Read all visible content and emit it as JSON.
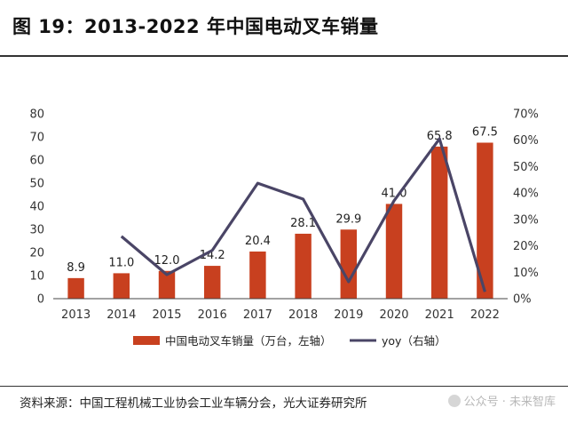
{
  "figure_title": "图 19：2013-2022 年中国电动叉车销量",
  "source_text": "资料来源：中国工程机械工业协会工业车辆分会，光大证券研究所",
  "watermark": {
    "text": "公众号 · 未来智库"
  },
  "colors": {
    "bar": "#c8401f",
    "line": "#4a4566",
    "axis": "#444444"
  },
  "chart_data": {
    "type": "bar",
    "title": "",
    "categories": [
      "2013",
      "2014",
      "2015",
      "2016",
      "2017",
      "2018",
      "2019",
      "2020",
      "2021",
      "2022"
    ],
    "series": [
      {
        "name": "中国电动叉车销量（万台，左轴）",
        "kind": "bar",
        "axis": "left",
        "values": [
          8.9,
          11.0,
          12.0,
          14.2,
          20.4,
          28.1,
          29.9,
          41.0,
          65.8,
          67.5
        ],
        "labels": [
          "8.9",
          "11.0",
          "12.0",
          "14.2",
          "20.4",
          "28.1",
          "29.9",
          "41.0",
          "65.8",
          "67.5"
        ]
      },
      {
        "name": "yoy（右轴）",
        "kind": "line",
        "axis": "right",
        "values": [
          null,
          23.6,
          9.1,
          18.3,
          43.7,
          37.7,
          6.4,
          37.1,
          60.5,
          2.6
        ]
      }
    ],
    "y_left": {
      "min": 0,
      "max": 80,
      "ticks": [
        0,
        10,
        20,
        30,
        40,
        50,
        60,
        70,
        80
      ],
      "tick_labels": [
        "0",
        "10",
        "20",
        "30",
        "40",
        "50",
        "60",
        "70",
        "80"
      ]
    },
    "y_right": {
      "min": 0,
      "max": 70,
      "ticks": [
        0,
        10,
        20,
        30,
        40,
        50,
        60,
        70
      ],
      "tick_labels": [
        "0%",
        "10%",
        "20%",
        "30%",
        "40%",
        "50%",
        "60%",
        "70%"
      ]
    },
    "legend": {
      "position": "bottom",
      "bar_label": "中国电动叉车销量（万台，左轴）",
      "line_label": "yoy（右轴）"
    }
  }
}
